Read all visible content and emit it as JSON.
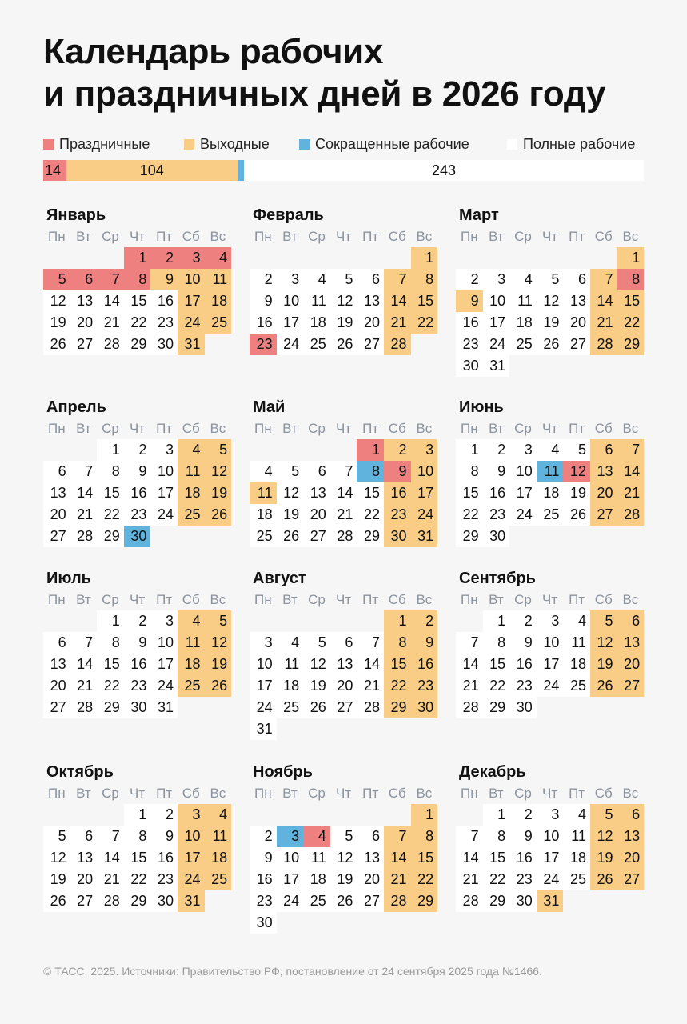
{
  "title_lines": [
    "Календарь рабочих",
    "и праздничных дней в 2026 году"
  ],
  "colors": {
    "holiday": "#ef8080",
    "weekend": "#f9cd85",
    "short": "#5fb3dd",
    "work": "#ffffff"
  },
  "legend": [
    {
      "key": "holiday",
      "label": "Праздничные",
      "count": "14"
    },
    {
      "key": "weekend",
      "label": "Выходные",
      "count": "104"
    },
    {
      "key": "short",
      "label": "Сокращенные рабочие",
      "count": "4"
    },
    {
      "key": "work",
      "label": "Полные рабочие",
      "count": "243"
    }
  ],
  "weekdays": [
    "Пн",
    "Вт",
    "Ср",
    "Чт",
    "Пт",
    "Сб",
    "Вс"
  ],
  "months": [
    {
      "name": "Январь",
      "first_weekday": 4,
      "days": 31,
      "holidays": [
        1,
        2,
        3,
        4,
        5,
        6,
        7,
        8
      ],
      "extra_weekends": [
        9
      ],
      "short": []
    },
    {
      "name": "Февраль",
      "first_weekday": 7,
      "days": 28,
      "holidays": [
        23
      ],
      "extra_weekends": [],
      "short": []
    },
    {
      "name": "Март",
      "first_weekday": 7,
      "days": 31,
      "holidays": [
        8
      ],
      "extra_weekends": [
        9
      ],
      "short": []
    },
    {
      "name": "Апрель",
      "first_weekday": 3,
      "days": 30,
      "holidays": [],
      "extra_weekends": [],
      "short": [
        30
      ]
    },
    {
      "name": "Май",
      "first_weekday": 5,
      "days": 31,
      "holidays": [
        1,
        9
      ],
      "extra_weekends": [
        11
      ],
      "short": [
        8
      ]
    },
    {
      "name": "Июнь",
      "first_weekday": 1,
      "days": 30,
      "holidays": [
        12
      ],
      "extra_weekends": [],
      "short": [
        11
      ]
    },
    {
      "name": "Июль",
      "first_weekday": 3,
      "days": 31,
      "holidays": [],
      "extra_weekends": [],
      "short": []
    },
    {
      "name": "Август",
      "first_weekday": 6,
      "days": 31,
      "holidays": [],
      "extra_weekends": [],
      "short": []
    },
    {
      "name": "Сентябрь",
      "first_weekday": 2,
      "days": 30,
      "holidays": [],
      "extra_weekends": [],
      "short": []
    },
    {
      "name": "Октябрь",
      "first_weekday": 4,
      "days": 31,
      "holidays": [],
      "extra_weekends": [],
      "short": []
    },
    {
      "name": "Ноябрь",
      "first_weekday": 7,
      "days": 30,
      "holidays": [
        4
      ],
      "extra_weekends": [],
      "short": [
        3
      ]
    },
    {
      "name": "Декабрь",
      "first_weekday": 2,
      "days": 31,
      "holidays": [],
      "extra_weekends": [
        31
      ],
      "short": []
    }
  ],
  "footer": "© ТАСС, 2025. Источники: Правительство РФ, постановление от 24 сентября 2025 года №1466."
}
